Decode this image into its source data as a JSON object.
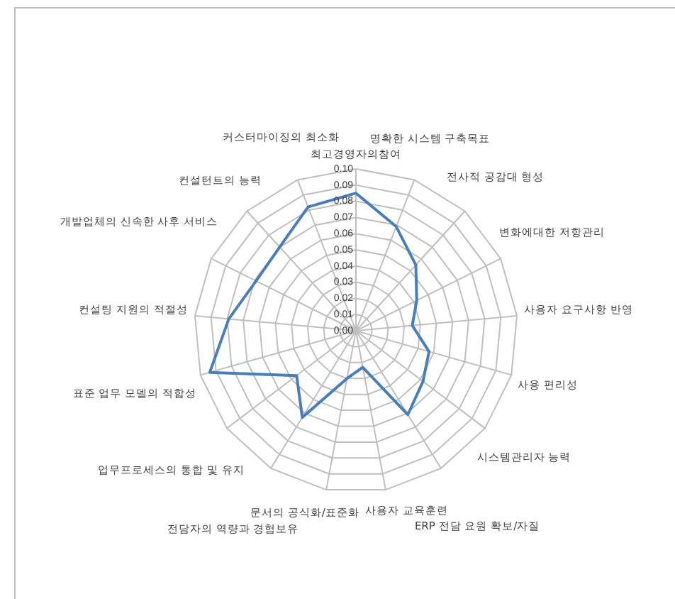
{
  "chart_data": {
    "type": "radar",
    "categories": [
      "최고경영자의참여",
      "명확한 시스템 구축목표",
      "전사적 공감대 형성",
      "변화에대한 저항관리",
      "사용자 요구사항 반영",
      "사용 편리성",
      "시스템관리자 능력",
      "ERP 전담 요원 확보/자질",
      "사용자 교육훈련",
      "문서의 공식화/표준화",
      "전담자의 역량과 경험보유",
      "업무프로세스의 통합 및 유지",
      "표준 업무 모델의 적합성",
      "컨설팅 지원의 적절성",
      "개발업체의 신속한 사후 서비스",
      "컨설턴트의 능력",
      "커스터마이징의 최소화"
    ],
    "series": [
      {
        "color": "#4a7ebb",
        "values": [
          0.085,
          0.069,
          0.055,
          0.042,
          0.035,
          0.047,
          0.052,
          0.061,
          0.023,
          0.03,
          0.063,
          0.046,
          0.094,
          0.079,
          0.069,
          0.07,
          0.082
        ]
      }
    ],
    "ylim": [
      0,
      0.1
    ],
    "yticks": [
      {
        "value": 0,
        "label": "0.00"
      },
      {
        "value": 0.01,
        "label": "0.01"
      },
      {
        "value": 0.02,
        "label": "0.02"
      },
      {
        "value": 0.03,
        "label": "0.03"
      },
      {
        "value": 0.04,
        "label": "0.04"
      },
      {
        "value": 0.05,
        "label": "0.05"
      },
      {
        "value": 0.06,
        "label": "0.06"
      },
      {
        "value": 0.07,
        "label": "0.07"
      },
      {
        "value": 0.08,
        "label": "0.08"
      },
      {
        "value": 0.09,
        "label": "0.09"
      },
      {
        "value": 0.1,
        "label": "0.10"
      }
    ],
    "grid": true,
    "legend": false,
    "marker": "none",
    "line_style": "solid"
  }
}
